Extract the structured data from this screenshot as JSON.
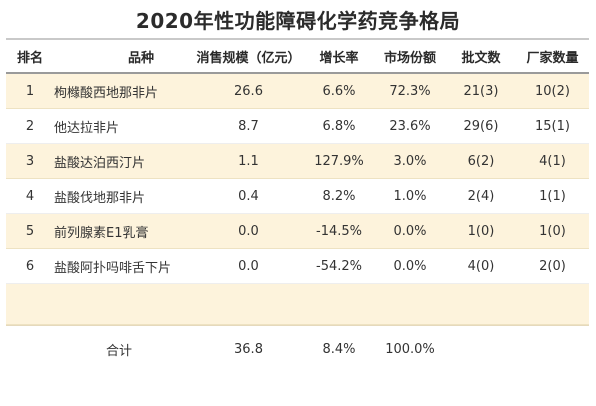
{
  "title": "2020年性功能障碍化学药竞争格局",
  "columns": [
    "排名",
    "品种",
    "消售规模（亿元）",
    "增长率",
    "市场份额",
    "批文数",
    "厂家数量"
  ],
  "rows": [
    {
      "rank": "1",
      "name": "枸橼酸西地那非片",
      "size": "26.6",
      "growth": "6.6%",
      "share": "72.3%",
      "approvals": "21(3)",
      "makers": "10(2)"
    },
    {
      "rank": "2",
      "name": "他达拉非片",
      "size": "8.7",
      "growth": "6.8%",
      "share": "23.6%",
      "approvals": "29(6)",
      "makers": "15(1)"
    },
    {
      "rank": "3",
      "name": "盐酸达泊西汀片",
      "size": "1.1",
      "growth": "127.9%",
      "share": "3.0%",
      "approvals": "6(2)",
      "makers": "4(1)"
    },
    {
      "rank": "4",
      "name": "盐酸伐地那非片",
      "size": "0.4",
      "growth": "8.2%",
      "share": "1.0%",
      "approvals": "2(4)",
      "makers": "1(1)"
    },
    {
      "rank": "5",
      "name": "前列腺素E1乳膏",
      "size": "0.0",
      "growth": "-14.5%",
      "share": "0.0%",
      "approvals": "1(0)",
      "makers": "1(0)"
    },
    {
      "rank": "6",
      "name": "盐酸阿扑吗啡舌下片",
      "size": "0.0",
      "growth": "-54.2%",
      "share": "0.0%",
      "approvals": "4(0)",
      "makers": "2(0)"
    }
  ],
  "total": {
    "label": "合计",
    "size": "36.8",
    "growth": "8.4%",
    "share": "100.0%"
  },
  "colors": {
    "stripe": "#fdf3dc",
    "header_border": "#9a9a9a"
  }
}
